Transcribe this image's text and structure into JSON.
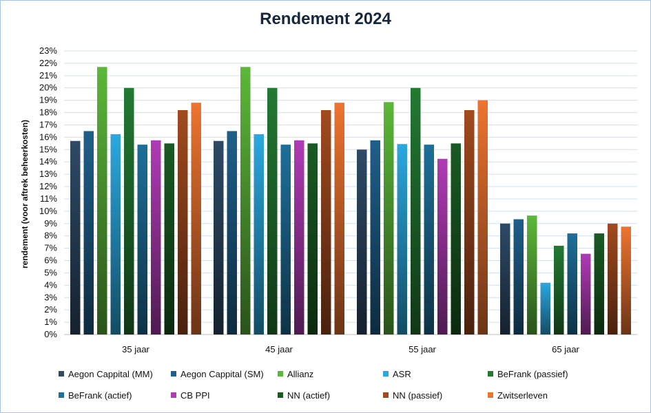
{
  "chart_data": {
    "type": "bar",
    "title": "Rendement 2024",
    "ylabel": "rendement (voor aftrek beheerkosten)",
    "xlabel": "",
    "ylim": [
      0,
      23
    ],
    "yticks": [
      "0%",
      "1%",
      "2%",
      "3%",
      "4%",
      "5%",
      "6%",
      "7%",
      "8%",
      "9%",
      "10%",
      "11%",
      "12%",
      "13%",
      "14%",
      "15%",
      "16%",
      "17%",
      "18%",
      "19%",
      "20%",
      "21%",
      "22%",
      "23%"
    ],
    "categories": [
      "35 jaar",
      "45 jaar",
      "55 jaar",
      "65 jaar"
    ],
    "grid": true,
    "legend_position": "bottom",
    "series": [
      {
        "name": "Aegon Cappital (MM)",
        "color": "#2e4a66",
        "values": [
          15.7,
          15.7,
          15.0,
          9.0
        ]
      },
      {
        "name": "Aegon Cappital (SM)",
        "color": "#1f5f8b",
        "values": [
          16.5,
          16.5,
          15.75,
          9.35
        ]
      },
      {
        "name": "Allianz",
        "color": "#5cb83a",
        "values": [
          21.7,
          21.7,
          18.85,
          9.65
        ]
      },
      {
        "name": "ASR",
        "color": "#2ba8e0",
        "values": [
          16.25,
          16.25,
          15.45,
          4.2
        ]
      },
      {
        "name": "BeFrank (passief)",
        "color": "#237a33",
        "values": [
          20.0,
          20.0,
          20.0,
          7.2
        ]
      },
      {
        "name": "BeFrank (actief)",
        "color": "#1e6f9a",
        "values": [
          15.4,
          15.4,
          15.4,
          8.2
        ]
      },
      {
        "name": "CB PPI",
        "color": "#b03bb5",
        "values": [
          15.75,
          15.75,
          14.25,
          6.55
        ]
      },
      {
        "name": "NN (actief)",
        "color": "#1a5b24",
        "values": [
          15.5,
          15.5,
          15.5,
          8.2
        ]
      },
      {
        "name": "NN (passief)",
        "color": "#a24a1e",
        "values": [
          18.2,
          18.2,
          18.2,
          9.0
        ]
      },
      {
        "name": "Zwitserleven",
        "color": "#ee7430",
        "values": [
          18.8,
          18.8,
          19.0,
          8.75
        ]
      }
    ]
  }
}
